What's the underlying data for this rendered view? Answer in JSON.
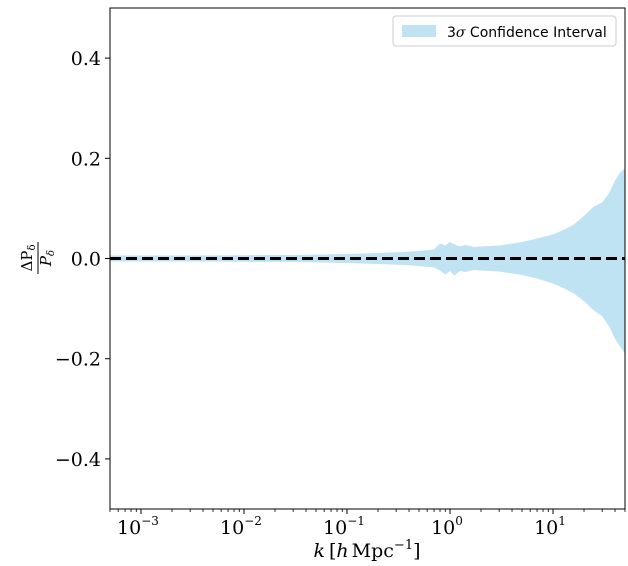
{
  "chart_data": {
    "type": "area",
    "title": "",
    "xlabel": "k [h Mpc⁻¹]",
    "ylabel": "ΔPδ / Pδ",
    "xscale": "log",
    "xlim": [
      0.0005,
      50
    ],
    "ylim": [
      -0.5,
      0.5
    ],
    "grid": false,
    "legend_position": "top-right",
    "x_ticks": [
      {
        "base": "10",
        "exp": "−3",
        "value": 0.001
      },
      {
        "base": "10",
        "exp": "−2",
        "value": 0.01
      },
      {
        "base": "10",
        "exp": "−1",
        "value": 0.1
      },
      {
        "base": "10",
        "exp": "0",
        "value": 1
      },
      {
        "base": "10",
        "exp": "1",
        "value": 10
      }
    ],
    "y_ticks": [
      {
        "label": "−0.4",
        "value": -0.4
      },
      {
        "label": "−0.2",
        "value": -0.2
      },
      {
        "label": "0.0",
        "value": 0.0
      },
      {
        "label": "0.2",
        "value": 0.2
      },
      {
        "label": "0.4",
        "value": 0.4
      }
    ],
    "series": [
      {
        "name": "3σ Confidence Interval",
        "color": "#bfe3f2",
        "x": [
          0.0005,
          0.001,
          0.003,
          0.01,
          0.03,
          0.06,
          0.1,
          0.2,
          0.35,
          0.5,
          0.7,
          0.8,
          0.9,
          1.0,
          1.1,
          1.25,
          1.4,
          1.7,
          2.0,
          3.0,
          5.0,
          7.0,
          10.0,
          13.0,
          16.0,
          20.0,
          25.0,
          30.0,
          35.0,
          40.0,
          45.0,
          50.0
        ],
        "upper": [
          0.006,
          0.006,
          0.006,
          0.0065,
          0.007,
          0.008,
          0.009,
          0.011,
          0.013,
          0.015,
          0.018,
          0.03,
          0.026,
          0.033,
          0.028,
          0.024,
          0.027,
          0.023,
          0.024,
          0.026,
          0.033,
          0.04,
          0.048,
          0.058,
          0.068,
          0.085,
          0.104,
          0.112,
          0.13,
          0.155,
          0.172,
          0.18
        ],
        "lower": [
          -0.006,
          -0.006,
          -0.006,
          -0.0065,
          -0.007,
          -0.008,
          -0.009,
          -0.011,
          -0.013,
          -0.015,
          -0.018,
          -0.024,
          -0.032,
          -0.025,
          -0.034,
          -0.025,
          -0.027,
          -0.023,
          -0.024,
          -0.026,
          -0.033,
          -0.04,
          -0.05,
          -0.06,
          -0.07,
          -0.085,
          -0.104,
          -0.115,
          -0.135,
          -0.16,
          -0.176,
          -0.19
        ]
      }
    ],
    "reference_line": {
      "y": 0.0,
      "style": "dashed",
      "color": "#000000"
    },
    "axis_label_parts": {
      "x_var": "k",
      "x_unit_open": "[",
      "x_unit_h": "h",
      "x_unit_mpc": "Mpc",
      "x_unit_exp": "−1",
      "x_unit_close": "]",
      "y_num": "ΔP",
      "y_den": "P",
      "y_sub": "δ"
    },
    "legend": {
      "sigma_prefix": "3",
      "sigma_symbol": "σ",
      "rest": " Confidence Interval"
    }
  }
}
